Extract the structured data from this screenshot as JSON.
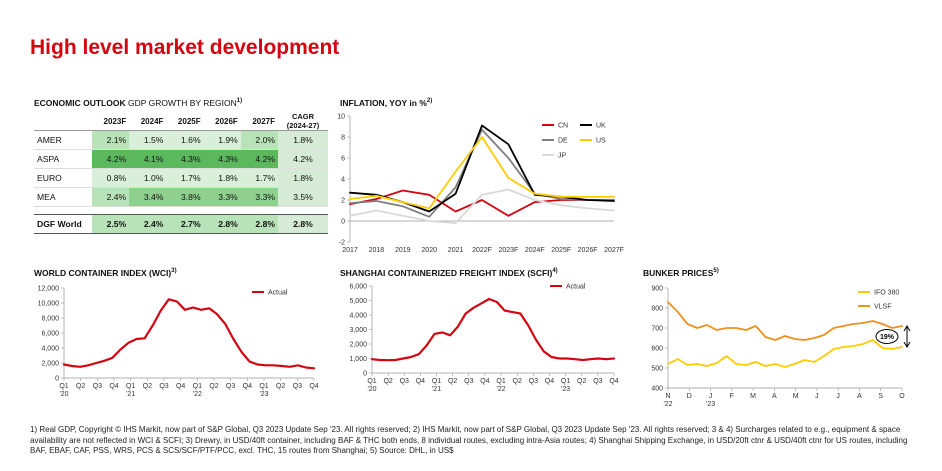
{
  "page": {
    "title": "High level market development",
    "footnote": "1) Real GDP, Copyright © IHS Markit, now part of S&P Global, Q3 2023 Update Sep '23. All rights reserved; 2) IHS Markit, now part of S&P Global, Q3 2023 Update Sep '23. All rights reserved; 3 & 4) Surcharges related to e.g., equipment & space availability are not reflected in WCI & SCFI; 3) Drewry, in USD/40ft container, including BAF & THC both ends, 8 individual routes, excluding intra-Asia routes; 4) Shanghai Shipping Exchange, in USD/20ft ctnr & USD/40ft ctnr for US routes, including BAF, EBAF, CAF, PSS, WRS, PCS & SCS/SCF/PTF/PCC, excl. THC, 15 routes from Shanghai; 5) Source: DHL, in US$"
  },
  "economic_outlook": {
    "title_bold": "ECONOMIC OUTLOOK",
    "title_light": "GDP GROWTH BY REGION",
    "title_sup": "1)",
    "columns": [
      "2023F",
      "2024F",
      "2025F",
      "2026F",
      "2027F"
    ],
    "cagr_header": [
      "CAGR",
      "(2024-27)"
    ],
    "rows": [
      {
        "region": "AMER",
        "values": [
          "2.1%",
          "1.5%",
          "1.6%",
          "1.9%",
          "2.0%"
        ],
        "cagr": "1.8%"
      },
      {
        "region": "ASPA",
        "values": [
          "4.2%",
          "4.1%",
          "4.3%",
          "4.3%",
          "4.2%"
        ],
        "cagr": "4.2%"
      },
      {
        "region": "EURO",
        "values": [
          "0.8%",
          "1.0%",
          "1.7%",
          "1.8%",
          "1.7%"
        ],
        "cagr": "1.8%"
      },
      {
        "region": "MEA",
        "values": [
          "2.4%",
          "3.4%",
          "3.8%",
          "3.3%",
          "3.3%"
        ],
        "cagr": "3.5%"
      }
    ],
    "total": {
      "region": "DGF World",
      "values": [
        "2.5%",
        "2.4%",
        "2.7%",
        "2.8%",
        "2.8%"
      ],
      "cagr": "2.8%"
    }
  },
  "chart_data": [
    {
      "id": "inflation",
      "type": "line",
      "title": "INFLATION, YOY in %",
      "title_sup": "2)",
      "categories": [
        "2017",
        "2018",
        "2019",
        "2020",
        "2021",
        "2022F",
        "2023F",
        "2024F",
        "2025F",
        "2026F",
        "2027F"
      ],
      "y_ticks": [
        "-2",
        "0",
        "2",
        "4",
        "6",
        "8",
        "10"
      ],
      "ylim": [
        -2,
        10
      ],
      "legend_position": "top-right",
      "series": [
        {
          "name": "CN",
          "color": "#d40511",
          "values": [
            1.6,
            2.1,
            2.9,
            2.5,
            0.9,
            2.0,
            0.5,
            1.8,
            2.0,
            2.0,
            2.0
          ]
        },
        {
          "name": "DE",
          "color": "#7f7f7f",
          "values": [
            1.7,
            1.9,
            1.4,
            0.4,
            3.2,
            8.7,
            6.0,
            2.6,
            2.1,
            2.0,
            2.0
          ]
        },
        {
          "name": "JP",
          "color": "#d9d9d9",
          "values": [
            0.5,
            1.0,
            0.5,
            0.0,
            -0.2,
            2.5,
            3.0,
            2.0,
            1.5,
            1.2,
            1.0
          ]
        },
        {
          "name": "UK",
          "color": "#000000",
          "values": [
            2.7,
            2.5,
            1.8,
            0.9,
            2.6,
            9.1,
            7.3,
            2.5,
            2.3,
            2.0,
            1.9
          ]
        },
        {
          "name": "US",
          "color": "#ffcc00",
          "values": [
            2.1,
            2.4,
            1.8,
            1.2,
            4.7,
            8.0,
            4.1,
            2.6,
            2.3,
            2.3,
            2.3
          ]
        }
      ]
    },
    {
      "id": "wci",
      "type": "line",
      "title": "WORLD CONTAINER INDEX (WCI)",
      "title_sup": "3)",
      "y_ticks": [
        "0",
        "2,000",
        "4,000",
        "6,000",
        "8,000",
        "10,000",
        "12,000"
      ],
      "ylim": [
        0,
        12000
      ],
      "x_ticks": [
        [
          "Q1",
          "'20"
        ],
        [
          "Q2",
          ""
        ],
        [
          "Q3",
          ""
        ],
        [
          "Q4",
          ""
        ],
        [
          "Q1",
          "'21"
        ],
        [
          "Q2",
          ""
        ],
        [
          "Q3",
          ""
        ],
        [
          "Q4",
          ""
        ],
        [
          "Q1",
          "'22"
        ],
        [
          "Q2",
          ""
        ],
        [
          "Q3",
          ""
        ],
        [
          "Q4",
          ""
        ],
        [
          "Q1",
          "'23"
        ],
        [
          "Q2",
          ""
        ],
        [
          "Q3",
          ""
        ],
        [
          "Q4",
          ""
        ]
      ],
      "legend_position": "top-right",
      "series": [
        {
          "name": "Actual",
          "color": "#d40511",
          "values": [
            1800,
            1600,
            1500,
            1700,
            2000,
            2300,
            2700,
            3800,
            4700,
            5200,
            5300,
            7000,
            9000,
            10500,
            10200,
            9100,
            9400,
            9100,
            9300,
            8500,
            7200,
            5200,
            3500,
            2200,
            1800,
            1700,
            1700,
            1600,
            1500,
            1700,
            1400,
            1300
          ]
        }
      ]
    },
    {
      "id": "scfi",
      "type": "line",
      "title": "SHANGHAI CONTAINERIZED FREIGHT INDEX (SCFI)",
      "title_sup": "4)",
      "y_ticks": [
        "0",
        "1,000",
        "2,000",
        "3,000",
        "4,000",
        "5,000",
        "6,000"
      ],
      "ylim": [
        0,
        6000
      ],
      "x_ticks": [
        [
          "Q1",
          "'20"
        ],
        [
          "Q2",
          ""
        ],
        [
          "Q3",
          ""
        ],
        [
          "Q4",
          ""
        ],
        [
          "Q1",
          "'21"
        ],
        [
          "Q2",
          ""
        ],
        [
          "Q3",
          ""
        ],
        [
          "Q4",
          ""
        ],
        [
          "Q1",
          "'22"
        ],
        [
          "Q2",
          ""
        ],
        [
          "Q3",
          ""
        ],
        [
          "Q4",
          ""
        ],
        [
          "Q1",
          "'23"
        ],
        [
          "Q2",
          ""
        ],
        [
          "Q3",
          ""
        ],
        [
          "Q4",
          ""
        ]
      ],
      "legend_position": "top-right",
      "series": [
        {
          "name": "Actual",
          "color": "#d40511",
          "values": [
            950,
            900,
            880,
            900,
            1000,
            1100,
            1300,
            1900,
            2700,
            2800,
            2600,
            3200,
            4100,
            4500,
            4800,
            5100,
            4900,
            4300,
            4200,
            4100,
            3300,
            2300,
            1500,
            1100,
            1000,
            1000,
            950,
            900,
            950,
            1000,
            950,
            1000
          ]
        }
      ]
    },
    {
      "id": "bunker",
      "type": "line",
      "title": "BUNKER PRICES",
      "title_sup": "5)",
      "y_ticks": [
        "400",
        "500",
        "600",
        "700",
        "800",
        "900"
      ],
      "ylim": [
        400,
        900
      ],
      "x_ticks": [
        [
          "N",
          "'22"
        ],
        [
          "D",
          ""
        ],
        [
          "J",
          "'23"
        ],
        [
          "F",
          ""
        ],
        [
          "M",
          ""
        ],
        [
          "A",
          ""
        ],
        [
          "M",
          ""
        ],
        [
          "J",
          ""
        ],
        [
          "J",
          ""
        ],
        [
          "A",
          ""
        ],
        [
          "S",
          ""
        ],
        [
          "O",
          ""
        ]
      ],
      "legend_position": "top-right",
      "annotation": "19%",
      "series": [
        {
          "name": "IFO 380",
          "color": "#ffcc00",
          "values": [
            520,
            545,
            515,
            520,
            510,
            525,
            560,
            520,
            515,
            530,
            510,
            520,
            505,
            520,
            540,
            530,
            560,
            595,
            605,
            610,
            620,
            640,
            600,
            595,
            605
          ]
        },
        {
          "name": "VLSF",
          "color": "#f0901e",
          "values": [
            830,
            780,
            720,
            700,
            715,
            690,
            700,
            700,
            690,
            710,
            655,
            640,
            660,
            645,
            640,
            650,
            665,
            700,
            710,
            720,
            725,
            735,
            720,
            700,
            710
          ]
        }
      ]
    }
  ]
}
